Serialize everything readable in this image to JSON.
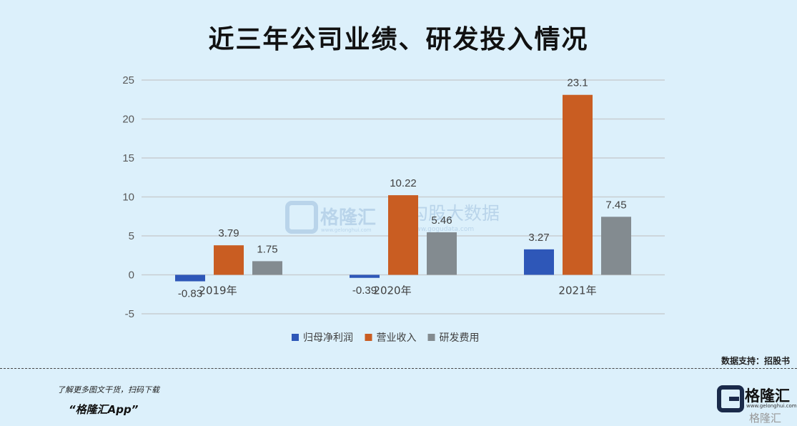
{
  "title": "近三年公司业绩、研发投入情况",
  "source": "数据支持：招股书",
  "promo_text": "了解更多图文干货，扫码下载",
  "app_name": "“格隆汇App”",
  "watermark": {
    "brand": "格隆汇",
    "brand_url": "www.gelonghui.com",
    "data_brand": "勾股大数据",
    "data_url": "www.gogudata.com"
  },
  "logo": {
    "name": "格隆汇",
    "url": "www.gelonghui.com",
    "sub": "格隆汇"
  },
  "colors": {
    "background": "#dcf0fb",
    "grid": "#c8cdd2"
  },
  "chart_data": {
    "type": "bar",
    "categories": [
      "2019年",
      "2020年",
      "2021年"
    ],
    "series": [
      {
        "name": "归母净利润",
        "color": "#2e57b8",
        "values": [
          -0.83,
          -0.39,
          3.27
        ]
      },
      {
        "name": "营业收入",
        "color": "#c95d22",
        "values": [
          3.79,
          10.22,
          23.1
        ]
      },
      {
        "name": "研发费用",
        "color": "#838b90",
        "values": [
          1.75,
          5.46,
          7.45
        ]
      }
    ],
    "data_labels": [
      [
        "-0.83",
        "-0.39",
        "3.27"
      ],
      [
        "3.79",
        "10.22",
        "23.1"
      ],
      [
        "1.75",
        "5.46",
        "7.45"
      ]
    ],
    "ylim": [
      -5,
      25
    ],
    "yticks": [
      25,
      20,
      15,
      10,
      5,
      0,
      -5
    ],
    "grid": true,
    "legend": "bottom-center",
    "xlabel": "",
    "ylabel": ""
  }
}
